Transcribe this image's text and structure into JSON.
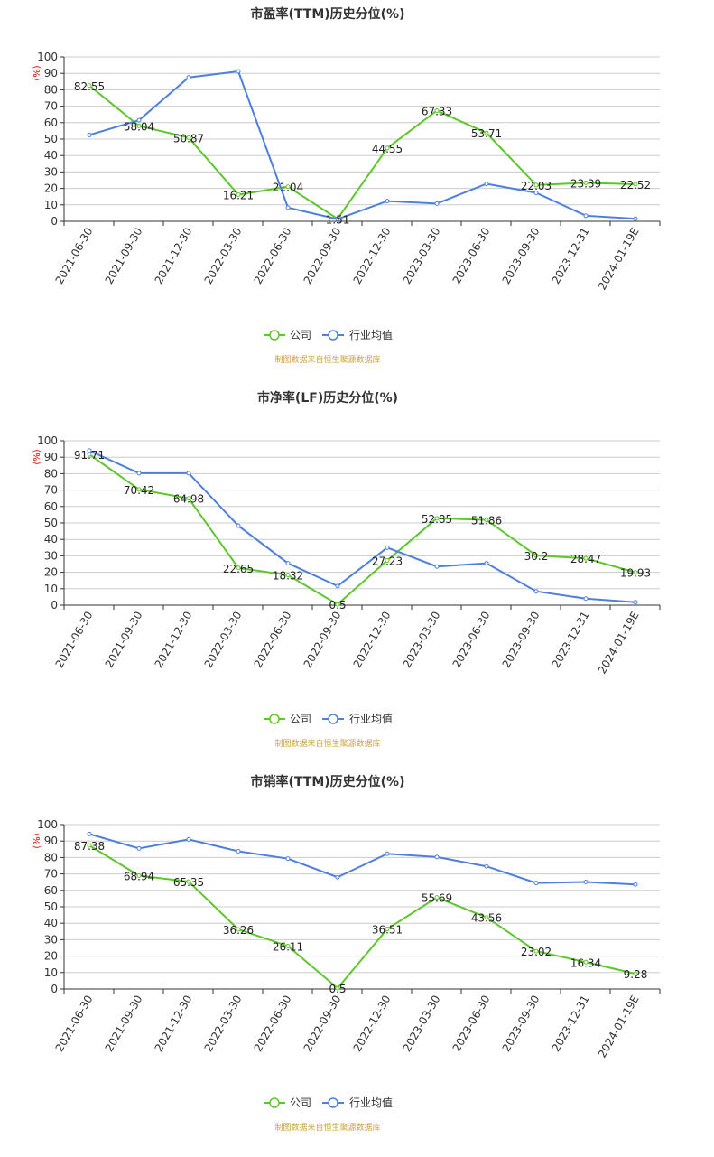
{
  "colors": {
    "company": "#5cc72a",
    "industry": "#4e7fdc",
    "axis": "#333333",
    "grid": "#cccccc",
    "unit": "#cc0000",
    "source": "#c9a33a",
    "title": "#333333"
  },
  "legend": {
    "company": "公司",
    "industry": "行业均值"
  },
  "source_note": "制图数据来自恒生聚源数据库",
  "unit_label": "(%)",
  "chart_data": [
    {
      "type": "line",
      "title": "市盈率(TTM)历史分位(%)",
      "categories": [
        "2021-06-30",
        "2021-09-30",
        "2021-12-30",
        "2022-03-30",
        "2022-06-30",
        "2022-09-30",
        "2022-12-30",
        "2023-03-30",
        "2023-06-30",
        "2023-09-30",
        "2023-12-31",
        "2024-01-19E"
      ],
      "ylim": [
        0,
        100
      ],
      "yticks": [
        0,
        10,
        20,
        30,
        40,
        50,
        60,
        70,
        80,
        90,
        100
      ],
      "series": [
        {
          "name": "公司",
          "values": [
            82.55,
            58.04,
            50.87,
            16.21,
            21.04,
            1.51,
            44.55,
            67.33,
            53.71,
            22.03,
            23.39,
            22.52
          ],
          "labels": [
            "82.55",
            "58.04",
            "50.87",
            "16.21",
            "21.04",
            "1.51",
            "44.55",
            "67.33",
            "53.71",
            "22.03",
            "23.39",
            "22.52"
          ]
        },
        {
          "name": "行业均值",
          "values": [
            52.5,
            61.5,
            87.5,
            91.2,
            8.3,
            1.3,
            12.3,
            10.8,
            22.8,
            17.3,
            3.4,
            1.6
          ]
        }
      ]
    },
    {
      "type": "line",
      "title": "市净率(LF)历史分位(%)",
      "categories": [
        "2021-06-30",
        "2021-09-30",
        "2021-12-30",
        "2022-03-30",
        "2022-06-30",
        "2022-09-30",
        "2022-12-30",
        "2023-03-30",
        "2023-06-30",
        "2023-09-30",
        "2023-12-31",
        "2024-01-19E"
      ],
      "ylim": [
        0,
        100
      ],
      "yticks": [
        0,
        10,
        20,
        30,
        40,
        50,
        60,
        70,
        80,
        90,
        100
      ],
      "series": [
        {
          "name": "公司",
          "values": [
            91.71,
            70.42,
            64.98,
            22.65,
            18.32,
            0.5,
            27.23,
            52.85,
            51.86,
            30.2,
            28.47,
            19.93
          ],
          "labels": [
            "91.71",
            "70.42",
            "64.98",
            "22.65",
            "18.32",
            "0.5",
            "27.23",
            "52.85",
            "51.86",
            "30.2",
            "28.47",
            "19.93"
          ]
        },
        {
          "name": "行业均值",
          "values": [
            94.0,
            80.3,
            80.3,
            48.3,
            25.5,
            11.6,
            35.0,
            23.5,
            25.5,
            8.4,
            4.0,
            1.8
          ]
        }
      ]
    },
    {
      "type": "line",
      "title": "市销率(TTM)历史分位(%)",
      "categories": [
        "2021-06-30",
        "2021-09-30",
        "2021-12-30",
        "2022-03-30",
        "2022-06-30",
        "2022-09-30",
        "2022-12-30",
        "2023-03-30",
        "2023-06-30",
        "2023-09-30",
        "2023-12-31",
        "2024-01-19E"
      ],
      "ylim": [
        0,
        100
      ],
      "yticks": [
        0,
        10,
        20,
        30,
        40,
        50,
        60,
        70,
        80,
        90,
        100
      ],
      "series": [
        {
          "name": "公司",
          "values": [
            87.38,
            68.94,
            65.35,
            36.26,
            26.11,
            0.5,
            36.51,
            55.69,
            43.56,
            23.02,
            16.34,
            9.28
          ],
          "labels": [
            "87.38",
            "68.94",
            "65.35",
            "36.26",
            "26.11",
            "0.5",
            "36.51",
            "55.69",
            "43.56",
            "23.02",
            "16.34",
            "9.28"
          ]
        },
        {
          "name": "行业均值",
          "values": [
            94.3,
            85.5,
            91.0,
            83.8,
            79.3,
            68.0,
            82.3,
            80.3,
            74.6,
            64.5,
            65.1,
            63.6
          ]
        }
      ]
    }
  ]
}
